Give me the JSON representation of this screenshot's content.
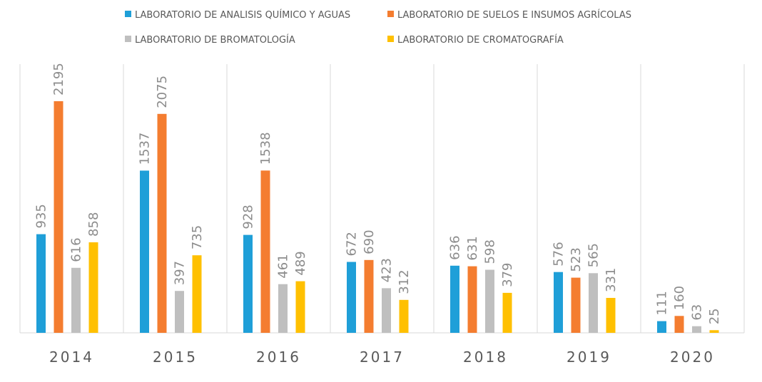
{
  "chart_data": {
    "type": "bar",
    "categories": [
      "2014",
      "2015",
      "2016",
      "2017",
      "2018",
      "2019",
      "2020"
    ],
    "series": [
      {
        "name": "LABORATORIO DE ANALISIS QUÍMICO Y AGUAS",
        "color": "#1f9fd8",
        "values": [
          935,
          1537,
          928,
          672,
          636,
          576,
          111
        ]
      },
      {
        "name": "LABORATORIO DE SUELOS E INSUMOS AGRÍCOLAS",
        "color": "#f47d30",
        "values": [
          2195,
          2075,
          1538,
          690,
          631,
          523,
          160
        ]
      },
      {
        "name": "LABORATORIO DE BROMATOLOGÍA",
        "color": "#bfbfbf",
        "values": [
          616,
          397,
          461,
          423,
          598,
          565,
          63
        ]
      },
      {
        "name": "LABORATORIO DE CROMATOGRAFÍA",
        "color": "#ffc000",
        "values": [
          858,
          735,
          489,
          312,
          379,
          331,
          25
        ]
      }
    ],
    "ylim": [
      0,
      2195
    ],
    "legend_position": "top",
    "vertical_gridlines": true,
    "data_labels": true
  }
}
